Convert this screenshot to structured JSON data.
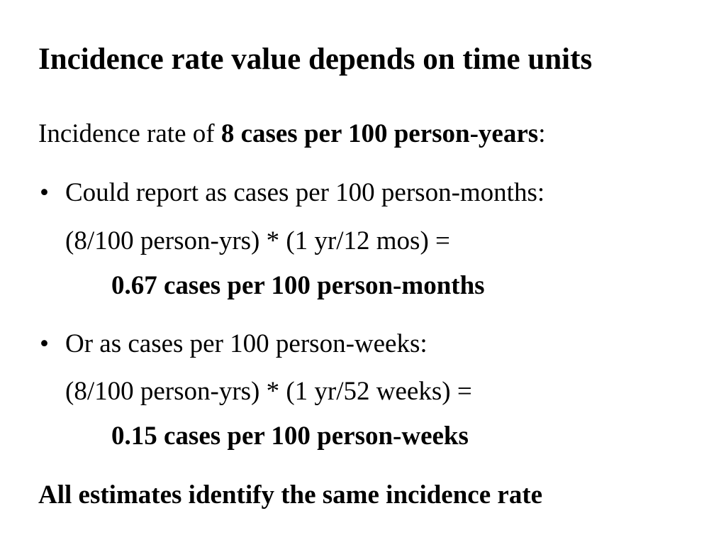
{
  "slide": {
    "title": "Incidence rate value depends on time units",
    "intro": {
      "prefix": "Incidence rate of ",
      "emphasis": "8 cases per 100 person-years",
      "suffix": ":"
    },
    "bullets": [
      {
        "marker": "•",
        "heading": "Could report as cases per 100 person-months:",
        "calculation": "(8/100 person-yrs) * (1 yr/12 mos) =",
        "result": "0.67 cases per 100 person-months"
      },
      {
        "marker": "•",
        "heading": "Or as cases per 100 person-weeks:",
        "calculation": "(8/100 person-yrs) * (1 yr/52 weeks) =",
        "result": "0.15 cases per 100 person-weeks"
      }
    ],
    "conclusion": "All estimates identify the same incidence rate"
  }
}
